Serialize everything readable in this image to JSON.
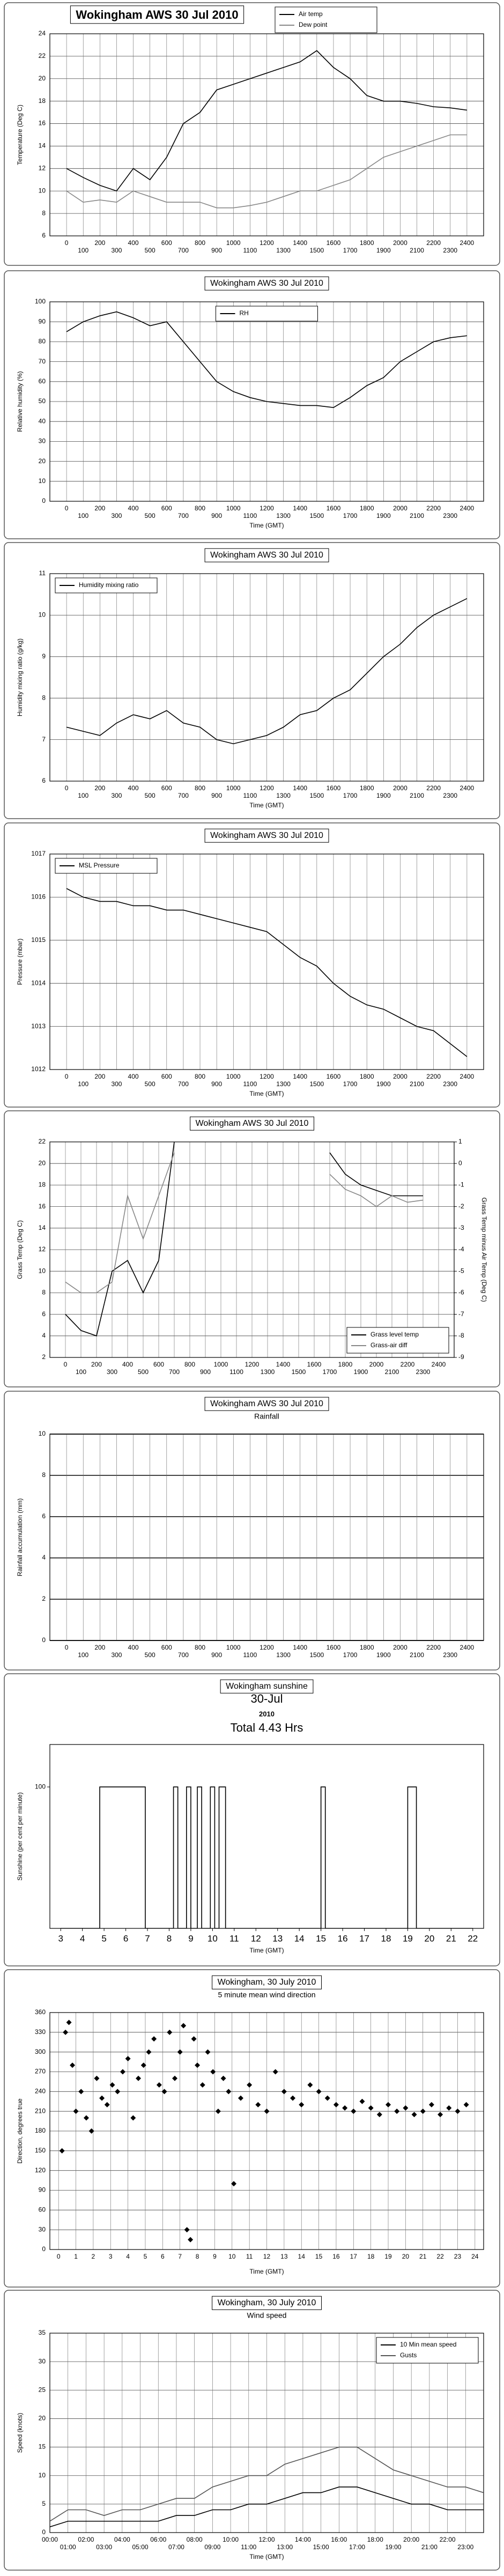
{
  "chart_data": [
    {
      "type": "line",
      "title": "Wokingham AWS 30 Jul 2010",
      "y_label": "Temperature (Deg C)",
      "x": [
        0,
        100,
        200,
        300,
        400,
        500,
        600,
        700,
        800,
        900,
        1000,
        1100,
        1200,
        1300,
        1400,
        1500,
        1600,
        1700,
        1800,
        1900,
        2000,
        2100,
        2200,
        2300,
        2400
      ],
      "series": [
        {
          "name": "Air temp",
          "color": "#000000",
          "values": [
            12,
            11.2,
            10.5,
            10,
            12,
            11,
            13,
            16,
            17,
            19,
            19.5,
            20,
            20.5,
            21,
            21.5,
            22.5,
            21,
            20,
            18.5,
            18,
            18,
            17.8,
            17.5,
            17.4,
            17.2
          ]
        },
        {
          "name": "Dew point",
          "color": "#888888",
          "values": [
            10,
            9,
            9.2,
            9,
            10,
            9.5,
            9,
            9,
            9,
            8.5,
            8.5,
            8.7,
            9,
            9.5,
            10,
            10,
            10.5,
            11,
            12,
            13,
            13.5,
            14,
            14.5,
            15,
            15
          ]
        }
      ],
      "xlim": [
        -100,
        2500
      ],
      "xticks": [
        0,
        100,
        200,
        300,
        400,
        500,
        600,
        700,
        800,
        900,
        1000,
        1100,
        1200,
        1300,
        1400,
        1500,
        1600,
        1700,
        1800,
        1900,
        2000,
        2100,
        2200,
        2300,
        2400
      ],
      "ylim": [
        6,
        24
      ],
      "yticks": [
        6,
        8,
        10,
        12,
        14,
        16,
        18,
        20,
        22,
        24
      ],
      "grid": true,
      "legend": "top-right"
    },
    {
      "type": "line",
      "title": "Wokingham AWS 30 Jul 2010",
      "x_label": "Time (GMT)",
      "y_label": "Relative humidity (%)",
      "x": [
        0,
        100,
        200,
        300,
        400,
        500,
        600,
        700,
        800,
        900,
        1000,
        1100,
        1200,
        1300,
        1400,
        1500,
        1600,
        1700,
        1800,
        1900,
        2000,
        2100,
        2200,
        2300,
        2400
      ],
      "series": [
        {
          "name": "RH",
          "color": "#000000",
          "values": [
            85,
            90,
            93,
            95,
            92,
            88,
            90,
            80,
            70,
            60,
            55,
            52,
            50,
            49,
            48,
            48,
            47,
            52,
            58,
            62,
            70,
            75,
            80,
            82,
            83
          ]
        }
      ],
      "xlim": [
        -100,
        2500
      ],
      "xticks": [
        0,
        100,
        200,
        300,
        400,
        500,
        600,
        700,
        800,
        900,
        1000,
        1100,
        1200,
        1300,
        1400,
        1500,
        1600,
        1700,
        1800,
        1900,
        2000,
        2100,
        2200,
        2300,
        2400
      ],
      "ylim": [
        0,
        100
      ],
      "yticks": [
        0,
        10,
        20,
        30,
        40,
        50,
        60,
        70,
        80,
        90,
        100
      ],
      "grid": true,
      "legend": "top-center"
    },
    {
      "type": "line",
      "title": "Wokingham AWS 30 Jul 2010",
      "x_label": "Time (GMT)",
      "y_label": "Humidity mixing ratio (g/kg)",
      "x": [
        0,
        100,
        200,
        300,
        400,
        500,
        600,
        700,
        800,
        900,
        1000,
        1100,
        1200,
        1300,
        1400,
        1500,
        1600,
        1700,
        1800,
        1900,
        2000,
        2100,
        2200,
        2300,
        2400
      ],
      "series": [
        {
          "name": "Humidity mixing ratio",
          "color": "#000000",
          "values": [
            7.3,
            7.2,
            7.1,
            7.4,
            7.6,
            7.5,
            7.7,
            7.4,
            7.3,
            7.0,
            6.9,
            7.0,
            7.1,
            7.3,
            7.6,
            7.7,
            8.0,
            8.2,
            8.6,
            9.0,
            9.3,
            9.7,
            10.0,
            10.2,
            10.4
          ]
        }
      ],
      "xlim": [
        -100,
        2500
      ],
      "xticks": [
        0,
        100,
        200,
        300,
        400,
        500,
        600,
        700,
        800,
        900,
        1000,
        1100,
        1200,
        1300,
        1400,
        1500,
        1600,
        1700,
        1800,
        1900,
        2000,
        2100,
        2200,
        2300,
        2400
      ],
      "ylim": [
        6,
        11
      ],
      "yticks": [
        6,
        7,
        8,
        9,
        10,
        11
      ],
      "grid": true,
      "legend": "top-left"
    },
    {
      "type": "line",
      "title": "Wokingham AWS 30 Jul 2010",
      "x_label": "Time (GMT)",
      "y_label": "Pressure (mbar)",
      "x": [
        0,
        100,
        200,
        300,
        400,
        500,
        600,
        700,
        800,
        900,
        1000,
        1100,
        1200,
        1300,
        1400,
        1500,
        1600,
        1700,
        1800,
        1900,
        2000,
        2100,
        2200,
        2300,
        2400
      ],
      "series": [
        {
          "name": "MSL Pressure",
          "color": "#000000",
          "values": [
            1016.2,
            1016.0,
            1015.9,
            1015.9,
            1015.8,
            1015.8,
            1015.7,
            1015.7,
            1015.6,
            1015.5,
            1015.4,
            1015.3,
            1015.2,
            1014.9,
            1014.6,
            1014.4,
            1014.0,
            1013.7,
            1013.5,
            1013.4,
            1013.2,
            1013.0,
            1012.9,
            1012.6,
            1012.3
          ]
        }
      ],
      "xlim": [
        -100,
        2500
      ],
      "xticks": [
        0,
        100,
        200,
        300,
        400,
        500,
        600,
        700,
        800,
        900,
        1000,
        1100,
        1200,
        1300,
        1400,
        1500,
        1600,
        1700,
        1800,
        1900,
        2000,
        2100,
        2200,
        2300,
        2400
      ],
      "ylim": [
        1012,
        1017
      ],
      "yticks": [
        1012,
        1013,
        1014,
        1015,
        1016,
        1017
      ],
      "grid": true,
      "legend": "top-left"
    },
    {
      "type": "line",
      "title": "Wokingham AWS 30 Jul 2010",
      "y_label": "Grass Temp (Deg C)",
      "y2_label": "Grass Temp minus Air Temp (Deg C)",
      "x": [
        0,
        100,
        200,
        300,
        400,
        500,
        600,
        700,
        800,
        900,
        1000,
        1100,
        1200,
        1300,
        1400,
        1500,
        1600,
        1700,
        1800,
        1900,
        2000,
        2100,
        2200,
        2300
      ],
      "series": [
        {
          "name": "Grass level temp",
          "color": "#000000",
          "values": [
            6,
            4.5,
            4,
            10,
            11,
            8,
            11,
            22,
            null,
            null,
            null,
            null,
            null,
            null,
            null,
            null,
            null,
            21,
            19,
            18,
            17.5,
            17,
            17,
            17
          ]
        },
        {
          "name": "Grass-air diff",
          "color": "#888888",
          "axis": "y2",
          "values": [
            -5.5,
            -6,
            -6,
            -5.5,
            -1.5,
            -3.5,
            -1.5,
            0.5,
            null,
            null,
            null,
            null,
            null,
            null,
            null,
            null,
            null,
            -0.5,
            -1.2,
            -1.5,
            -2,
            -1.5,
            -1.8,
            -1.7
          ]
        }
      ],
      "xlim": [
        -100,
        2500
      ],
      "xticks": [
        0,
        100,
        200,
        300,
        400,
        500,
        600,
        700,
        800,
        900,
        1000,
        1100,
        1200,
        1300,
        1400,
        1500,
        1600,
        1700,
        1800,
        1900,
        2000,
        2100,
        2200,
        2300,
        2400
      ],
      "ylim": [
        2,
        22
      ],
      "yticks": [
        2,
        4,
        6,
        8,
        10,
        12,
        14,
        16,
        18,
        20,
        22
      ],
      "y2lim": [
        -9,
        1
      ],
      "y2ticks": [
        -9,
        -8,
        -7,
        -6,
        -5,
        -4,
        -3,
        -2,
        -1,
        0,
        1
      ],
      "grid": true,
      "legend": "bottom-right"
    },
    {
      "type": "line",
      "title": "Wokingham AWS 30 Jul 2010",
      "subtitle": "Rainfall",
      "y_label": "Rainfall accumulation (mm)",
      "x": [
        0,
        100,
        200,
        300,
        400,
        500,
        600,
        700,
        800,
        900,
        1000,
        1100,
        1200,
        1300,
        1400,
        1500,
        1600,
        1700,
        1800,
        1900,
        2000,
        2100,
        2200,
        2300,
        2400
      ],
      "series": [
        {
          "name": "Rainfall",
          "color": "#000000",
          "values": [
            0,
            0,
            0,
            0,
            0,
            0,
            0,
            0,
            0,
            0,
            0,
            0,
            0,
            0,
            0,
            0,
            0,
            0,
            0,
            0,
            0,
            0,
            0,
            0,
            0
          ]
        }
      ],
      "xlim": [
        -100,
        2500
      ],
      "xticks": [
        0,
        100,
        200,
        300,
        400,
        500,
        600,
        700,
        800,
        900,
        1000,
        1100,
        1200,
        1300,
        1400,
        1500,
        1600,
        1700,
        1800,
        1900,
        2000,
        2100,
        2200,
        2300,
        2400
      ],
      "ylim": [
        0,
        10
      ],
      "yticks": [
        0,
        2,
        4,
        6,
        8,
        10
      ],
      "grid": true
    },
    {
      "type": "line",
      "title": "Wokingham sunshine",
      "subtitle": "30-Jul",
      "annotations": [
        "2010",
        "Total 4.43 Hrs"
      ],
      "x_label": "Time (GMT)",
      "y_label": "Sunshine (per cent per minute)",
      "x": [
        3,
        4.8,
        4.8,
        6.9,
        6.9,
        8.2,
        8.2,
        8.4,
        8.4,
        8.8,
        8.8,
        9.0,
        9.0,
        9.3,
        9.3,
        9.5,
        9.5,
        9.9,
        9.9,
        10.1,
        10.1,
        10.3,
        10.3,
        10.6,
        10.6,
        15.0,
        15.0,
        15.2,
        15.2,
        19.0,
        19.0,
        19.4,
        19.4,
        22
      ],
      "series": [
        {
          "name": "Sunshine",
          "color": "#000000",
          "values": [
            0,
            0,
            100,
            100,
            0,
            0,
            100,
            100,
            0,
            0,
            100,
            100,
            0,
            0,
            100,
            100,
            0,
            0,
            100,
            100,
            0,
            0,
            100,
            100,
            0,
            0,
            100,
            100,
            0,
            0,
            100,
            100,
            0,
            0
          ]
        }
      ],
      "xlim": [
        2.5,
        22.5
      ],
      "xticks": [
        3,
        4,
        5,
        6,
        7,
        8,
        9,
        10,
        11,
        12,
        13,
        14,
        15,
        16,
        17,
        18,
        19,
        20,
        21,
        22
      ],
      "ylim": [
        0,
        130
      ],
      "yticks": [
        100
      ],
      "grid": false
    },
    {
      "type": "scatter",
      "title": "Wokingham,  30 July 2010",
      "subtitle": "5 minute mean wind direction",
      "x_label": "Time (GMT)",
      "y_label": "Direction, degrees true",
      "x": [
        0.2,
        0.4,
        0.6,
        0.8,
        1.0,
        1.3,
        1.6,
        1.9,
        2.2,
        2.5,
        2.8,
        3.1,
        3.4,
        3.7,
        4.0,
        4.3,
        4.6,
        4.9,
        5.2,
        5.5,
        5.8,
        6.1,
        6.4,
        6.7,
        7.0,
        7.2,
        7.4,
        7.6,
        7.8,
        8.0,
        8.3,
        8.6,
        8.9,
        9.2,
        9.5,
        9.8,
        10.1,
        10.5,
        11.0,
        11.5,
        12.0,
        12.5,
        13.0,
        13.5,
        14.0,
        14.5,
        15.0,
        15.5,
        16.0,
        16.5,
        17.0,
        17.5,
        18.0,
        18.5,
        19.0,
        19.5,
        20.0,
        20.5,
        21.0,
        21.5,
        22.0,
        22.5,
        23.0,
        23.5
      ],
      "series": [
        {
          "name": "Direction",
          "color": "#000000",
          "values": [
            150,
            330,
            345,
            280,
            210,
            240,
            200,
            180,
            260,
            230,
            220,
            250,
            240,
            270,
            290,
            200,
            260,
            280,
            300,
            320,
            250,
            240,
            330,
            260,
            300,
            340,
            30,
            15,
            320,
            280,
            250,
            300,
            270,
            210,
            260,
            240,
            100,
            230,
            250,
            220,
            210,
            270,
            240,
            230,
            220,
            250,
            240,
            230,
            220,
            215,
            210,
            225,
            215,
            205,
            220,
            210,
            215,
            205,
            210,
            220,
            205,
            215,
            210,
            220
          ]
        }
      ],
      "xlim": [
        -0.5,
        24.5
      ],
      "xticks": [
        0,
        1,
        2,
        3,
        4,
        5,
        6,
        7,
        8,
        9,
        10,
        11,
        12,
        13,
        14,
        15,
        16,
        17,
        18,
        19,
        20,
        21,
        22,
        23,
        24
      ],
      "ylim": [
        0,
        360
      ],
      "yticks": [
        0,
        30,
        60,
        90,
        120,
        150,
        180,
        210,
        240,
        270,
        300,
        330,
        360
      ],
      "grid": true
    },
    {
      "type": "line",
      "title": "Wokingham,  30 July 2010",
      "subtitle": "Wind speed",
      "x_label": "Time (GMT)",
      "y_label": "Speed (knots)",
      "x": [
        0,
        1,
        2,
        3,
        4,
        5,
        6,
        7,
        8,
        9,
        10,
        11,
        12,
        13,
        14,
        15,
        16,
        17,
        18,
        19,
        20,
        21,
        22,
        23,
        24
      ],
      "series": [
        {
          "name": "10 Min mean speed",
          "color": "#000000",
          "values": [
            1,
            2,
            2,
            2,
            2,
            2,
            2,
            3,
            3,
            4,
            4,
            5,
            5,
            6,
            7,
            7,
            8,
            8,
            7,
            6,
            5,
            5,
            4,
            4,
            4
          ]
        },
        {
          "name": "Gusts",
          "color": "#555555",
          "values": [
            2,
            4,
            4,
            3,
            4,
            4,
            5,
            6,
            6,
            8,
            9,
            10,
            10,
            12,
            13,
            14,
            15,
            15,
            13,
            11,
            10,
            9,
            8,
            8,
            7
          ]
        }
      ],
      "xlim": [
        0,
        24
      ],
      "xticks": [
        {
          "value": 0,
          "label": "00:00"
        },
        {
          "value": 1,
          "label": "01:00"
        },
        {
          "value": 2,
          "label": "02:00"
        },
        {
          "value": 3,
          "label": "03:00"
        },
        {
          "value": 4,
          "label": "04:00"
        },
        {
          "value": 5,
          "label": "05:00"
        },
        {
          "value": 6,
          "label": "06:00"
        },
        {
          "value": 7,
          "label": "07:00"
        },
        {
          "value": 8,
          "label": "08:00"
        },
        {
          "value": 9,
          "label": "09:00"
        },
        {
          "value": 10,
          "label": "10:00"
        },
        {
          "value": 11,
          "label": "11:00"
        },
        {
          "value": 12,
          "label": "12:00"
        },
        {
          "value": 13,
          "label": "13:00"
        },
        {
          "value": 14,
          "label": "14:00"
        },
        {
          "value": 15,
          "label": "15:00"
        },
        {
          "value": 16,
          "label": "16:00"
        },
        {
          "value": 17,
          "label": "17:00"
        },
        {
          "value": 18,
          "label": "18:00"
        },
        {
          "value": 19,
          "label": "19:00"
        },
        {
          "value": 20,
          "label": "20:00"
        },
        {
          "value": 21,
          "label": "21:00"
        },
        {
          "value": 22,
          "label": "22:00"
        },
        {
          "value": 23,
          "label": "23:00"
        }
      ],
      "ylim": [
        0,
        35
      ],
      "yticks": [
        0,
        5,
        10,
        15,
        20,
        25,
        30,
        35
      ],
      "grid": true,
      "legend": "top-right"
    }
  ]
}
